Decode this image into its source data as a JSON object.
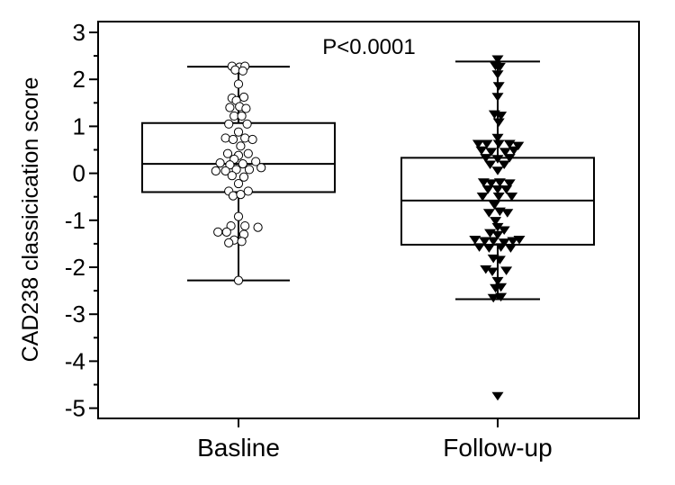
{
  "chart_data": {
    "type": "box",
    "title": "",
    "ylabel": "CAD238 classicication score",
    "xlabel": "",
    "ylim": [
      -5.2,
      3.2
    ],
    "yticks": [
      3,
      2,
      1,
      0,
      -1,
      -2,
      -3,
      -4,
      -5
    ],
    "yticks_minor": [
      2.5,
      1.5,
      0.5,
      -0.5,
      -1.5,
      -2.5,
      -3.5,
      -4.5
    ],
    "grid": false,
    "annotation": "P<0.0001",
    "categories": [
      "Basline",
      "Follow-up"
    ],
    "series": [
      {
        "category": "Basline",
        "marker": "open-circle",
        "whisker_low": -2.28,
        "q1": -0.4,
        "median": 0.2,
        "q3": 1.07,
        "whisker_high": 2.27,
        "points": [
          [
            -0.3,
            2.28
          ],
          [
            0.05,
            2.26
          ],
          [
            0.3,
            2.28
          ],
          [
            -0.15,
            2.2
          ],
          [
            0.2,
            2.18
          ],
          [
            0.0,
            1.9
          ],
          [
            -0.3,
            1.6
          ],
          [
            0.25,
            1.62
          ],
          [
            -0.1,
            1.55
          ],
          [
            -0.4,
            1.4
          ],
          [
            0.05,
            1.42
          ],
          [
            0.35,
            1.38
          ],
          [
            -0.2,
            1.22
          ],
          [
            0.15,
            1.22
          ],
          [
            -0.45,
            1.05
          ],
          [
            0.4,
            1.05
          ],
          [
            0.0,
            0.88
          ],
          [
            -0.6,
            0.75
          ],
          [
            -0.25,
            0.72
          ],
          [
            0.3,
            0.75
          ],
          [
            0.65,
            0.72
          ],
          [
            0.1,
            0.58
          ],
          [
            -0.5,
            0.42
          ],
          [
            0.0,
            0.38
          ],
          [
            0.45,
            0.42
          ],
          [
            -0.2,
            0.3
          ],
          [
            -0.85,
            0.22
          ],
          [
            -0.4,
            0.18
          ],
          [
            0.2,
            0.2
          ],
          [
            0.8,
            0.25
          ],
          [
            1.05,
            0.12
          ],
          [
            -1.05,
            0.05
          ],
          [
            -0.6,
            0.05
          ],
          [
            -0.1,
            0.08
          ],
          [
            0.5,
            0.08
          ],
          [
            -0.3,
            -0.05
          ],
          [
            0.25,
            -0.08
          ],
          [
            0.0,
            -0.22
          ],
          [
            -0.45,
            -0.38
          ],
          [
            0.45,
            -0.38
          ],
          [
            -0.25,
            -0.48
          ],
          [
            0.1,
            -0.45
          ],
          [
            0.0,
            -0.92
          ],
          [
            -0.35,
            -1.12
          ],
          [
            0.3,
            -1.12
          ],
          [
            0.9,
            -1.15
          ],
          [
            -0.95,
            -1.25
          ],
          [
            -0.55,
            -1.25
          ],
          [
            0.25,
            -1.3
          ],
          [
            -0.2,
            -1.42
          ],
          [
            0.15,
            -1.45
          ],
          [
            -0.45,
            -1.48
          ],
          [
            0.0,
            -2.28
          ]
        ]
      },
      {
        "category": "Follow-up",
        "marker": "filled-triangle-down",
        "whisker_low": -2.68,
        "q1": -1.52,
        "median": -0.58,
        "q3": 0.33,
        "whisker_high": 2.38,
        "points": [
          [
            0.0,
            2.42
          ],
          [
            -0.1,
            2.28
          ],
          [
            0.1,
            2.26
          ],
          [
            0.0,
            2.1
          ],
          [
            0.05,
            1.85
          ],
          [
            0.0,
            1.62
          ],
          [
            -0.15,
            1.25
          ],
          [
            0.15,
            1.22
          ],
          [
            0.05,
            1.08
          ],
          [
            0.0,
            0.75
          ],
          [
            -0.9,
            0.62
          ],
          [
            -0.5,
            0.62
          ],
          [
            0.05,
            0.62
          ],
          [
            0.55,
            0.62
          ],
          [
            0.95,
            0.58
          ],
          [
            -0.75,
            0.48
          ],
          [
            -0.3,
            0.45
          ],
          [
            0.35,
            0.45
          ],
          [
            0.75,
            0.48
          ],
          [
            -0.55,
            0.32
          ],
          [
            0.0,
            0.3
          ],
          [
            0.55,
            0.32
          ],
          [
            -0.35,
            0.18
          ],
          [
            0.3,
            0.18
          ],
          [
            0.0,
            0.05
          ],
          [
            -0.65,
            -0.2
          ],
          [
            -0.3,
            -0.22
          ],
          [
            0.1,
            -0.2
          ],
          [
            0.55,
            -0.22
          ],
          [
            -0.45,
            -0.35
          ],
          [
            0.0,
            -0.35
          ],
          [
            0.4,
            -0.35
          ],
          [
            -0.7,
            -0.5
          ],
          [
            0.05,
            -0.5
          ],
          [
            0.65,
            -0.5
          ],
          [
            -0.15,
            -0.68
          ],
          [
            -0.4,
            -0.85
          ],
          [
            0.1,
            -0.82
          ],
          [
            0.45,
            -0.85
          ],
          [
            -0.1,
            -1.02
          ],
          [
            0.0,
            -1.15
          ],
          [
            0.3,
            -1.22
          ],
          [
            -0.35,
            -1.28
          ],
          [
            0.0,
            -1.32
          ],
          [
            -1.05,
            -1.42
          ],
          [
            -0.6,
            -1.45
          ],
          [
            -0.2,
            -1.45
          ],
          [
            0.3,
            -1.48
          ],
          [
            0.7,
            -1.45
          ],
          [
            1.0,
            -1.42
          ],
          [
            -0.85,
            -1.58
          ],
          [
            -0.4,
            -1.6
          ],
          [
            0.15,
            -1.58
          ],
          [
            0.6,
            -1.6
          ],
          [
            -0.2,
            -1.82
          ],
          [
            0.1,
            -1.85
          ],
          [
            -0.55,
            -2.05
          ],
          [
            -0.25,
            -2.1
          ],
          [
            0.4,
            -2.08
          ],
          [
            0.0,
            -2.3
          ],
          [
            -0.1,
            -2.45
          ],
          [
            0.15,
            -2.43
          ],
          [
            -0.2,
            -2.66
          ],
          [
            0.15,
            -2.64
          ],
          [
            0.0,
            -4.75
          ]
        ]
      }
    ]
  }
}
